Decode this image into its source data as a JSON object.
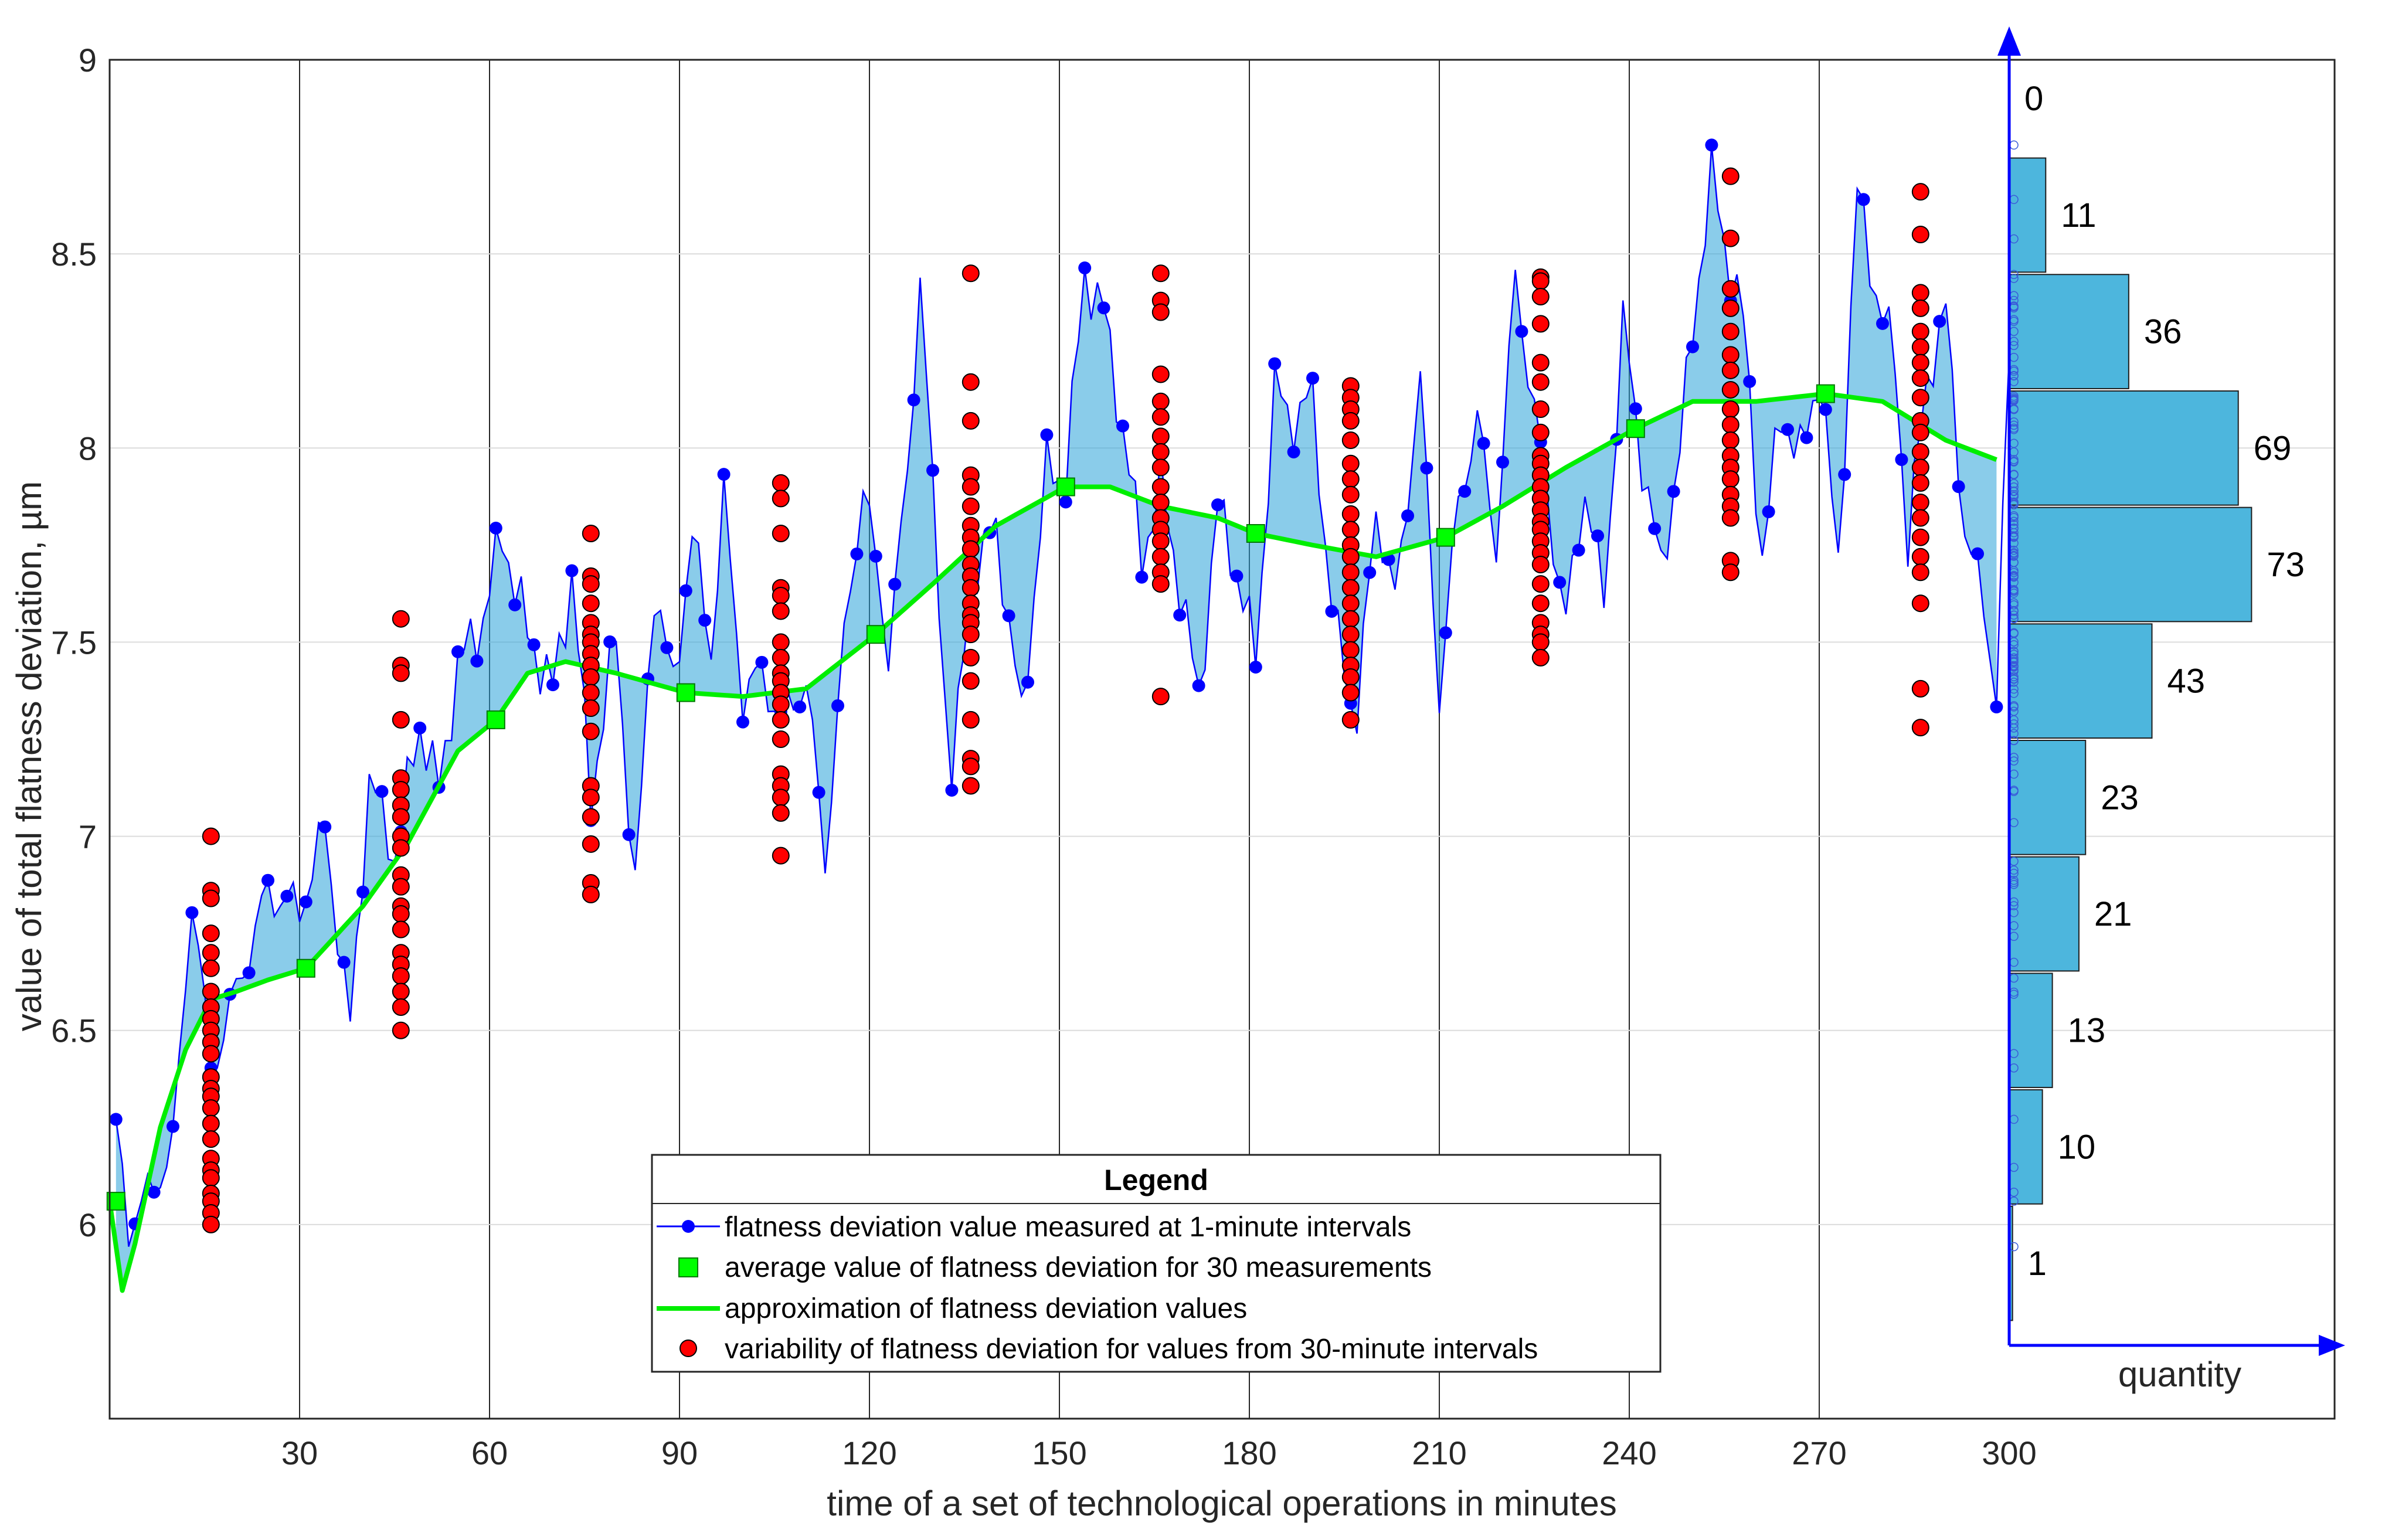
{
  "chart_data": {
    "type": "line",
    "xlabel": "time of a set of technological operations in minutes",
    "ylabel": "value of total flatness deviation, µm",
    "xlim": [
      0,
      300
    ],
    "ylim": [
      5.5,
      9
    ],
    "x_ticks": [
      "30",
      "60",
      "90",
      "120",
      "150",
      "180",
      "210",
      "240",
      "270",
      "300"
    ],
    "y_ticks": [
      "6",
      "6.5",
      "7",
      "7.5",
      "8",
      "8.5",
      "9"
    ],
    "legend": {
      "title": "Legend",
      "entries": [
        "flatness deviation value measured at 1-minute intervals",
        "average value of flatness deviation for 30 measurements",
        "approximation of flatness deviation values",
        "variability of flatness deviation for values from 30-minute intervals"
      ]
    },
    "colors": {
      "measured": "#0000ff",
      "average": "#00ff00",
      "approximation": "#00ee00",
      "variability": "#ff0000",
      "histogram": "#4db6dd",
      "fill": "#2aa3d9"
    },
    "average_points": [
      {
        "x": 1,
        "y": 6.06
      },
      {
        "x": 31,
        "y": 6.66
      },
      {
        "x": 61,
        "y": 7.3
      },
      {
        "x": 91,
        "y": 7.37
      },
      {
        "x": 121,
        "y": 7.52
      },
      {
        "x": 151,
        "y": 7.9
      },
      {
        "x": 181,
        "y": 7.78
      },
      {
        "x": 211,
        "y": 7.77
      },
      {
        "x": 241,
        "y": 8.05
      },
      {
        "x": 271,
        "y": 8.14
      }
    ],
    "approximation_anchors": [
      {
        "x": 0,
        "y": 6.06
      },
      {
        "x": 2,
        "y": 5.83
      },
      {
        "x": 4,
        "y": 5.95
      },
      {
        "x": 8,
        "y": 6.25
      },
      {
        "x": 12,
        "y": 6.45
      },
      {
        "x": 16,
        "y": 6.58
      },
      {
        "x": 20,
        "y": 6.6
      },
      {
        "x": 25,
        "y": 6.63
      },
      {
        "x": 31,
        "y": 6.66
      },
      {
        "x": 40,
        "y": 6.82
      },
      {
        "x": 47,
        "y": 6.98
      },
      {
        "x": 55,
        "y": 7.22
      },
      {
        "x": 61,
        "y": 7.3
      },
      {
        "x": 66,
        "y": 7.42
      },
      {
        "x": 72,
        "y": 7.45
      },
      {
        "x": 80,
        "y": 7.42
      },
      {
        "x": 91,
        "y": 7.37
      },
      {
        "x": 100,
        "y": 7.36
      },
      {
        "x": 110,
        "y": 7.38
      },
      {
        "x": 121,
        "y": 7.52
      },
      {
        "x": 130,
        "y": 7.65
      },
      {
        "x": 140,
        "y": 7.8
      },
      {
        "x": 151,
        "y": 7.9
      },
      {
        "x": 158,
        "y": 7.9
      },
      {
        "x": 166,
        "y": 7.85
      },
      {
        "x": 175,
        "y": 7.82
      },
      {
        "x": 181,
        "y": 7.78
      },
      {
        "x": 190,
        "y": 7.75
      },
      {
        "x": 200,
        "y": 7.72
      },
      {
        "x": 211,
        "y": 7.77
      },
      {
        "x": 220,
        "y": 7.85
      },
      {
        "x": 230,
        "y": 7.95
      },
      {
        "x": 241,
        "y": 8.05
      },
      {
        "x": 250,
        "y": 8.12
      },
      {
        "x": 260,
        "y": 8.12
      },
      {
        "x": 271,
        "y": 8.14
      },
      {
        "x": 280,
        "y": 8.12
      },
      {
        "x": 290,
        "y": 8.02
      },
      {
        "x": 298,
        "y": 7.97
      }
    ],
    "measured_anchors": [
      {
        "x": 1,
        "y": 6.24
      },
      {
        "x": 3,
        "y": 6.0
      },
      {
        "x": 6,
        "y": 6.07
      },
      {
        "x": 10,
        "y": 6.2
      },
      {
        "x": 13,
        "y": 6.85
      },
      {
        "x": 16,
        "y": 6.4
      },
      {
        "x": 20,
        "y": 6.6
      },
      {
        "x": 25,
        "y": 6.86
      },
      {
        "x": 30,
        "y": 6.81
      },
      {
        "x": 34,
        "y": 7.02
      },
      {
        "x": 38,
        "y": 6.5
      },
      {
        "x": 41,
        "y": 7.15
      },
      {
        "x": 45,
        "y": 6.95
      },
      {
        "x": 49,
        "y": 7.29
      },
      {
        "x": 52,
        "y": 7.12
      },
      {
        "x": 55,
        "y": 7.44
      },
      {
        "x": 59,
        "y": 7.56
      },
      {
        "x": 62,
        "y": 7.78
      },
      {
        "x": 66,
        "y": 7.52
      },
      {
        "x": 70,
        "y": 7.38
      },
      {
        "x": 73,
        "y": 7.67
      },
      {
        "x": 76,
        "y": 7.1
      },
      {
        "x": 80,
        "y": 7.52
      },
      {
        "x": 83,
        "y": 6.85
      },
      {
        "x": 86,
        "y": 7.65
      },
      {
        "x": 89,
        "y": 7.38
      },
      {
        "x": 92,
        "y": 7.78
      },
      {
        "x": 95,
        "y": 7.48
      },
      {
        "x": 97,
        "y": 7.87
      },
      {
        "x": 100,
        "y": 7.36
      },
      {
        "x": 103,
        "y": 7.42
      },
      {
        "x": 106,
        "y": 7.3
      },
      {
        "x": 110,
        "y": 7.4
      },
      {
        "x": 113,
        "y": 6.94
      },
      {
        "x": 116,
        "y": 7.5
      },
      {
        "x": 119,
        "y": 7.91
      },
      {
        "x": 123,
        "y": 7.48
      },
      {
        "x": 126,
        "y": 7.92
      },
      {
        "x": 128,
        "y": 8.45
      },
      {
        "x": 131,
        "y": 7.6
      },
      {
        "x": 133,
        "y": 7.14
      },
      {
        "x": 136,
        "y": 7.65
      },
      {
        "x": 140,
        "y": 7.8
      },
      {
        "x": 144,
        "y": 7.3
      },
      {
        "x": 148,
        "y": 7.95
      },
      {
        "x": 151,
        "y": 7.92
      },
      {
        "x": 154,
        "y": 8.45
      },
      {
        "x": 157,
        "y": 8.35
      },
      {
        "x": 160,
        "y": 8.05
      },
      {
        "x": 163,
        "y": 7.72
      },
      {
        "x": 166,
        "y": 7.9
      },
      {
        "x": 169,
        "y": 7.65
      },
      {
        "x": 172,
        "y": 7.35
      },
      {
        "x": 175,
        "y": 7.85
      },
      {
        "x": 178,
        "y": 7.68
      },
      {
        "x": 181,
        "y": 7.46
      },
      {
        "x": 184,
        "y": 8.15
      },
      {
        "x": 187,
        "y": 8.07
      },
      {
        "x": 190,
        "y": 8.13
      },
      {
        "x": 193,
        "y": 7.58
      },
      {
        "x": 197,
        "y": 7.3
      },
      {
        "x": 200,
        "y": 7.85
      },
      {
        "x": 203,
        "y": 7.6
      },
      {
        "x": 207,
        "y": 8.17
      },
      {
        "x": 210,
        "y": 7.36
      },
      {
        "x": 213,
        "y": 7.86
      },
      {
        "x": 216,
        "y": 8.07
      },
      {
        "x": 219,
        "y": 7.75
      },
      {
        "x": 222,
        "y": 8.44
      },
      {
        "x": 226,
        "y": 7.98
      },
      {
        "x": 230,
        "y": 7.55
      },
      {
        "x": 233,
        "y": 7.9
      },
      {
        "x": 236,
        "y": 7.6
      },
      {
        "x": 239,
        "y": 8.32
      },
      {
        "x": 242,
        "y": 7.97
      },
      {
        "x": 245,
        "y": 7.68
      },
      {
        "x": 248,
        "y": 8.0
      },
      {
        "x": 251,
        "y": 8.45
      },
      {
        "x": 253,
        "y": 8.7
      },
      {
        "x": 255,
        "y": 8.53
      },
      {
        "x": 258,
        "y": 8.33
      },
      {
        "x": 261,
        "y": 7.71
      },
      {
        "x": 264,
        "y": 8.1
      },
      {
        "x": 267,
        "y": 7.97
      },
      {
        "x": 270,
        "y": 8.2
      },
      {
        "x": 273,
        "y": 7.7
      },
      {
        "x": 276,
        "y": 8.66
      },
      {
        "x": 279,
        "y": 8.4
      },
      {
        "x": 282,
        "y": 8.22
      },
      {
        "x": 284,
        "y": 7.75
      },
      {
        "x": 287,
        "y": 8.18
      },
      {
        "x": 290,
        "y": 8.35
      },
      {
        "x": 293,
        "y": 7.78
      },
      {
        "x": 296,
        "y": 7.6
      },
      {
        "x": 298,
        "y": 7.36
      },
      {
        "x": 300,
        "y": 8.23
      }
    ],
    "variability_groups": [
      {
        "x": 16,
        "values": [
          7.0,
          6.86,
          6.84,
          6.75,
          6.7,
          6.66,
          6.6,
          6.56,
          6.53,
          6.5,
          6.47,
          6.44,
          6.38,
          6.35,
          6.33,
          6.3,
          6.26,
          6.22,
          6.17,
          6.14,
          6.12,
          6.08,
          6.06,
          6.03,
          6.0
        ]
      },
      {
        "x": 46,
        "values": [
          7.56,
          7.44,
          7.42,
          7.3,
          7.15,
          7.12,
          7.08,
          7.05,
          7.0,
          6.97,
          6.9,
          6.87,
          6.82,
          6.8,
          6.76,
          6.7,
          6.67,
          6.64,
          6.6,
          6.56,
          6.5
        ]
      },
      {
        "x": 76,
        "values": [
          7.78,
          7.67,
          7.65,
          7.6,
          7.55,
          7.52,
          7.5,
          7.47,
          7.44,
          7.41,
          7.37,
          7.33,
          7.27,
          7.13,
          7.1,
          7.05,
          6.98,
          6.88,
          6.85
        ]
      },
      {
        "x": 106,
        "values": [
          7.91,
          7.87,
          7.78,
          7.64,
          7.62,
          7.58,
          7.5,
          7.46,
          7.42,
          7.4,
          7.37,
          7.34,
          7.3,
          7.25,
          7.16,
          7.13,
          7.1,
          7.06,
          6.95
        ]
      },
      {
        "x": 136,
        "values": [
          8.45,
          8.17,
          8.07,
          7.93,
          7.9,
          7.85,
          7.8,
          7.77,
          7.74,
          7.7,
          7.67,
          7.64,
          7.6,
          7.57,
          7.55,
          7.52,
          7.46,
          7.4,
          7.3,
          7.2,
          7.18,
          7.13
        ]
      },
      {
        "x": 166,
        "values": [
          8.45,
          8.38,
          8.35,
          8.19,
          8.12,
          8.08,
          8.03,
          7.99,
          7.95,
          7.9,
          7.86,
          7.82,
          7.79,
          7.76,
          7.72,
          7.68,
          7.65,
          7.36
        ]
      },
      {
        "x": 196,
        "values": [
          8.16,
          8.13,
          8.1,
          8.07,
          8.02,
          7.96,
          7.92,
          7.88,
          7.83,
          7.79,
          7.75,
          7.72,
          7.68,
          7.64,
          7.6,
          7.56,
          7.52,
          7.48,
          7.44,
          7.41,
          7.37,
          7.3
        ]
      },
      {
        "x": 226,
        "values": [
          8.44,
          8.43,
          8.39,
          8.32,
          8.22,
          8.17,
          8.1,
          8.04,
          7.98,
          7.96,
          7.93,
          7.9,
          7.87,
          7.84,
          7.81,
          7.79,
          7.76,
          7.73,
          7.7,
          7.65,
          7.6,
          7.55,
          7.52,
          7.5,
          7.46
        ]
      },
      {
        "x": 256,
        "values": [
          8.7,
          8.54,
          8.41,
          8.36,
          8.3,
          8.24,
          8.2,
          8.15,
          8.1,
          8.06,
          8.02,
          7.98,
          7.95,
          7.92,
          7.88,
          7.85,
          7.82,
          7.71,
          7.68
        ]
      },
      {
        "x": 286,
        "values": [
          8.66,
          8.55,
          8.4,
          8.36,
          8.3,
          8.26,
          8.22,
          8.18,
          8.13,
          8.07,
          8.04,
          7.99,
          7.95,
          7.91,
          7.86,
          7.82,
          7.77,
          7.72,
          7.68,
          7.6,
          7.38,
          7.28
        ]
      }
    ],
    "histogram": {
      "label": "quantity",
      "max_count": 80,
      "bins": [
        {
          "from": 5.75,
          "to": 6.05,
          "count": 1,
          "label": "1"
        },
        {
          "from": 6.05,
          "to": 6.35,
          "count": 10,
          "label": "10"
        },
        {
          "from": 6.35,
          "to": 6.65,
          "count": 13,
          "label": "13"
        },
        {
          "from": 6.65,
          "to": 6.95,
          "count": 21,
          "label": "21"
        },
        {
          "from": 6.95,
          "to": 7.25,
          "count": 23,
          "label": "23"
        },
        {
          "from": 7.25,
          "to": 7.55,
          "count": 43,
          "label": "43"
        },
        {
          "from": 7.55,
          "to": 7.85,
          "count": 73,
          "label": "73"
        },
        {
          "from": 7.85,
          "to": 8.15,
          "count": 69,
          "label": "69"
        },
        {
          "from": 8.15,
          "to": 8.45,
          "count": 36,
          "label": "36"
        },
        {
          "from": 8.45,
          "to": 8.75,
          "count": 11,
          "label": "11"
        },
        {
          "from": 8.75,
          "to": 9.05,
          "count": 0,
          "label": "0"
        }
      ]
    }
  }
}
